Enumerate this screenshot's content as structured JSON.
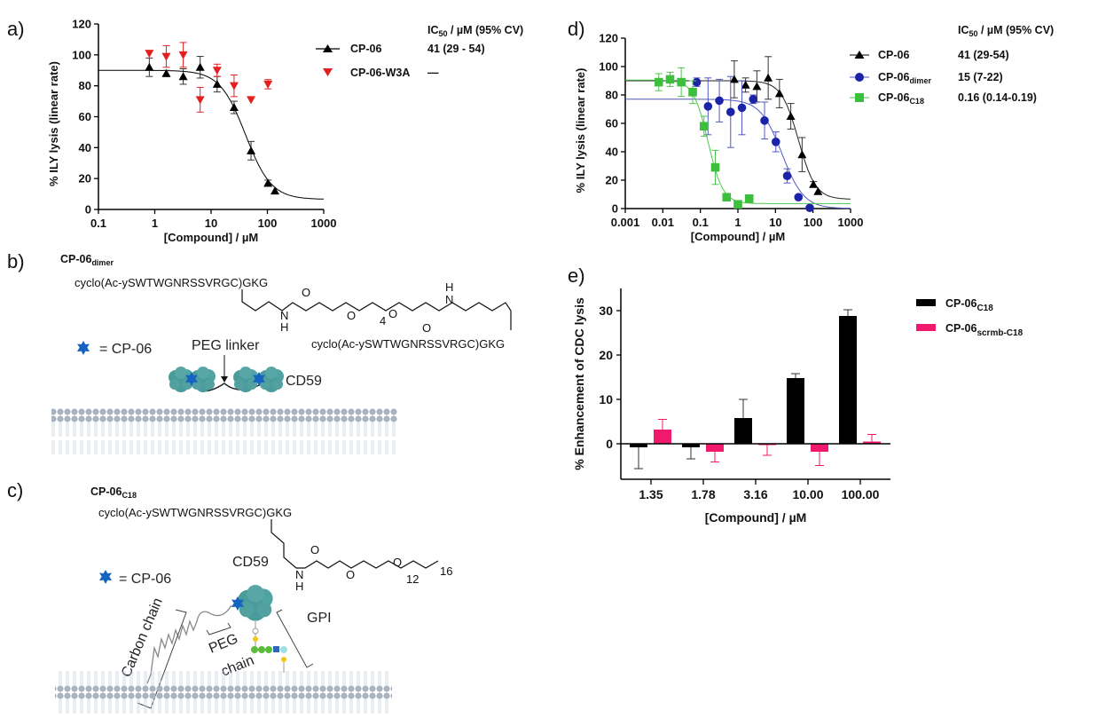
{
  "panel_labels": {
    "a": "a)",
    "b": "b)",
    "c": "c)",
    "d": "d)",
    "e": "e)"
  },
  "colors": {
    "black": "#000000",
    "red": "#e3201f",
    "blue": "#1c23a6",
    "blue_curve": "#5157c4",
    "green": "#3cbf3c",
    "pink": "#f0196e",
    "protein": "#4a9b9b",
    "star": "#1565c0"
  },
  "chart_data": [
    {
      "id": "a",
      "type": "scatter",
      "xlabel": "[Compound] / µM",
      "ylabel": "% ILY lysis (linear rate)",
      "xscale": "log",
      "xlim": [
        0.1,
        1000
      ],
      "ylim": [
        0,
        120
      ],
      "xticks": [
        "0.1",
        "1",
        "10",
        "100",
        "1000"
      ],
      "yticks": [
        "0",
        "20",
        "40",
        "60",
        "80",
        "100",
        "120"
      ],
      "legend_header": {
        "main": "IC",
        "sub": "50",
        "rest": " / µM (95% CV)"
      },
      "series": [
        {
          "name": "CP-06",
          "ic50_label": "41 (29 - 54)",
          "marker": "triangle-up",
          "color": "#000000",
          "fit": {
            "top": 90,
            "bottom": 6.5,
            "ic50": 41,
            "hill": 1.9
          },
          "x": [
            0.8,
            1.6,
            3.2,
            6.4,
            12.8,
            25.6,
            51.2,
            102.4,
            136
          ],
          "y": [
            92,
            88,
            86,
            92,
            81,
            66,
            38,
            17,
            12
          ],
          "err": [
            6,
            2,
            5,
            7,
            5,
            4,
            6,
            2,
            1
          ]
        },
        {
          "name": "CP-06-W3A",
          "ic50_label": "—",
          "marker": "triangle-down",
          "color": "#e3201f",
          "x": [
            0.8,
            1.6,
            3.2,
            6.4,
            12.8,
            25.6,
            51.2,
            102.4
          ],
          "y": [
            101,
            99,
            100,
            71,
            90,
            80,
            71,
            81
          ],
          "err": [
            1,
            7,
            8,
            8,
            4,
            7,
            1,
            3
          ]
        }
      ]
    },
    {
      "id": "d",
      "type": "scatter",
      "xlabel": "[Compound] / µM",
      "ylabel": "% ILY lysis (linear rate)",
      "xscale": "log",
      "xlim": [
        0.001,
        1000
      ],
      "ylim": [
        0,
        120
      ],
      "xticks": [
        "0.001",
        "0.01",
        "0.1",
        "1",
        "10",
        "100",
        "1000"
      ],
      "yticks": [
        "0",
        "20",
        "40",
        "60",
        "80",
        "100",
        "120"
      ],
      "legend_header": {
        "main": "IC",
        "sub": "50",
        "rest": " / µM (95% CV)"
      },
      "series": [
        {
          "name": "CP-06",
          "name_sub": "",
          "ic50_label": "41 (29-54)",
          "marker": "triangle-up",
          "color": "#000000",
          "curve_color": "#222222",
          "fit": {
            "top": 90,
            "bottom": 6.5,
            "ic50": 41,
            "hill": 1.9
          },
          "x": [
            0.8,
            1.6,
            3.2,
            6.4,
            12.8,
            25.6,
            51.2,
            102.4,
            136
          ],
          "y": [
            91,
            87,
            86,
            92,
            81,
            65,
            38,
            17,
            12
          ],
          "err": [
            13,
            5,
            11,
            15,
            10,
            9,
            12,
            2,
            1
          ]
        },
        {
          "name": "CP-06",
          "name_sub": "dimer",
          "ic50_label": "15 (7-22)",
          "marker": "circle",
          "color": "#1c23a6",
          "curve_color": "#5157c4",
          "fit": {
            "top": 77,
            "bottom": 0,
            "ic50": 15,
            "hill": 1.5
          },
          "x": [
            0.08,
            0.16,
            0.32,
            0.64,
            1.28,
            2.56,
            5.12,
            10.24,
            20.5,
            41,
            82
          ],
          "y": [
            89,
            72,
            76,
            68,
            71,
            77,
            62,
            47,
            23,
            8,
            0.5
          ],
          "err": [
            3,
            20,
            15,
            25,
            19,
            3,
            13,
            7,
            5,
            1,
            1
          ]
        },
        {
          "name": "CP-06",
          "name_sub": "C18",
          "ic50_label": "0.16 (0.14-0.19)",
          "marker": "square",
          "color": "#3cbf3c",
          "curve_color": "#4fc34f",
          "fit": {
            "top": 90.5,
            "bottom": 3.5,
            "ic50": 0.16,
            "hill": 2.2
          },
          "x": [
            0.0078,
            0.0156,
            0.031,
            0.0625,
            0.125,
            0.25,
            0.5,
            1,
            2
          ],
          "y": [
            89,
            91,
            89,
            82,
            58,
            29,
            8,
            3,
            7
          ],
          "err": [
            6,
            5,
            10,
            8,
            7,
            12,
            2,
            1,
            1
          ]
        }
      ]
    },
    {
      "id": "e",
      "type": "bar",
      "xlabel": "[Compound] / µM",
      "ylabel": "% Enhancement of CDC lysis",
      "categories": [
        "1.35",
        "1.78",
        "3.16",
        "10.00",
        "100.00"
      ],
      "ylim": [
        -8,
        35
      ],
      "yticks": [
        "0",
        "10",
        "20",
        "30"
      ],
      "series": [
        {
          "name": "CP-06",
          "name_sub": "C18",
          "color": "#000000",
          "values": [
            -0.8,
            -0.8,
            5.8,
            14.8,
            28.8
          ],
          "err": [
            4.8,
            2.6,
            4.2,
            1.0,
            1.4
          ]
        },
        {
          "name": "CP-06",
          "name_sub": "scrmb-C18",
          "color": "#f0196e",
          "values": [
            3.2,
            -1.8,
            -0.3,
            -1.8,
            0.5
          ],
          "err": [
            2.3,
            2.3,
            2.3,
            3.1,
            1.6
          ]
        }
      ]
    }
  ],
  "diagram_b": {
    "title": {
      "main": "CP-06",
      "sub": "dimer"
    },
    "seq1": "cyclo(Ac-ySWTWGNRSSVRGC)GKG",
    "seq2": "cyclo(Ac-ySWTWGNRSSVRGC)GKG",
    "chem": {
      "O1": "O",
      "NH1": "N",
      "H1": "H",
      "O2": "O",
      "rep": "4",
      "O3": "O",
      "H2": "H",
      "N2": "N",
      "O4": "O"
    },
    "key": "= CP-06",
    "peg_label": "PEG linker",
    "cd59_label": "CD59"
  },
  "diagram_c": {
    "title": {
      "main": "CP-06",
      "sub": "C18"
    },
    "seq": "cyclo(Ac-ySWTWGNRSSVRGC)GKG",
    "chem": {
      "O1": "O",
      "N": "N",
      "H": "H",
      "O2": "O",
      "O3": "O",
      "rep1": "12",
      "rep2": "16"
    },
    "key": "= CP-06",
    "cd59_label": "CD59",
    "gpi_label": "GPI",
    "peg_label_1": "PEG",
    "peg_label_2": "chain",
    "carbon_label": "Carbon chain"
  }
}
